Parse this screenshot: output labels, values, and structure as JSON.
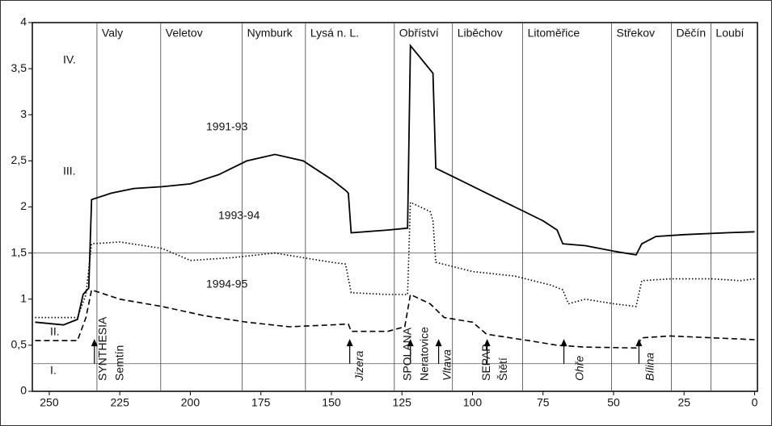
{
  "chart_data": {
    "type": "line",
    "xlim": [
      256,
      -1
    ],
    "ylim": [
      0,
      4
    ],
    "xticks": [
      250,
      225,
      200,
      175,
      150,
      125,
      100,
      75,
      50,
      25,
      0
    ],
    "yticks": [
      0,
      {
        "value": 0.5,
        "label": "0,5"
      },
      1,
      {
        "value": 1.5,
        "label": "1,5"
      },
      2,
      {
        "value": 2.5,
        "label": "2,5"
      },
      3,
      {
        "value": 3.5,
        "label": "3,5"
      },
      4
    ],
    "class_lines": [
      0.3,
      1.5
    ],
    "classes": [
      "I.",
      "II.",
      "III.",
      "IV."
    ],
    "places": [
      {
        "name": "Valy",
        "km": 233.1
      },
      {
        "name": "Veletov",
        "km": 210.5
      },
      {
        "name": "Nymburk",
        "km": 181.6
      },
      {
        "name": "Lysá n. L.",
        "km": 159.2
      },
      {
        "name": "Obříství",
        "km": 127.7
      },
      {
        "name": "Liběchov",
        "km": 107.1
      },
      {
        "name": "Litoměřice",
        "km": 82.2
      },
      {
        "name": "Střekov",
        "km": 50.7
      },
      {
        "name": "Děčín",
        "km": 29.5
      },
      {
        "name": "Loubí",
        "km": 15.5
      }
    ],
    "sources": [
      {
        "label": "SYNTHESIA",
        "km": 232,
        "style": "normal"
      },
      {
        "label": "Semtín",
        "km": 226,
        "style": "normal"
      },
      {
        "label": "Jizera",
        "km": 141,
        "style": "italic"
      },
      {
        "label": "SPOLANA",
        "km": 124,
        "style": "normal"
      },
      {
        "label": "Neratovice",
        "km": 118,
        "style": "normal"
      },
      {
        "label": "Vltava",
        "km": 110,
        "style": "italic"
      },
      {
        "label": "SEPAP",
        "km": 96,
        "style": "normal"
      },
      {
        "label": "Štětí",
        "km": 90,
        "style": "normal"
      },
      {
        "label": "Ohře",
        "km": 63,
        "style": "italic"
      },
      {
        "label": "Bílina",
        "km": 38,
        "style": "italic"
      }
    ],
    "arrows_km": [
      234,
      143.5,
      122,
      112,
      94.8,
      67.6,
      41
    ],
    "series": [
      {
        "name": "1991-93",
        "color": "#000000",
        "dash": "solid",
        "x": [
          255,
          245,
          240,
          238,
          236,
          235,
          228,
          220,
          210,
          200,
          190,
          180,
          170,
          160,
          150,
          145,
          144,
          143,
          130,
          123,
          122,
          118,
          114,
          113,
          105,
          95,
          85,
          75,
          70,
          68,
          60,
          50,
          42,
          40,
          35,
          25,
          10,
          0
        ],
        "values": [
          0.75,
          0.72,
          0.78,
          1.05,
          1.12,
          2.08,
          2.15,
          2.2,
          2.22,
          2.25,
          2.35,
          2.5,
          2.57,
          2.5,
          2.3,
          2.18,
          2.15,
          1.72,
          1.75,
          1.77,
          3.75,
          3.6,
          3.45,
          2.42,
          2.3,
          2.15,
          2.0,
          1.85,
          1.75,
          1.6,
          1.58,
          1.52,
          1.48,
          1.6,
          1.68,
          1.7,
          1.72,
          1.73
        ]
      },
      {
        "name": "1993-94",
        "color": "#000000",
        "dash": "dotted",
        "x": [
          255,
          240,
          237,
          235,
          225,
          210,
          200,
          185,
          170,
          150,
          145,
          143,
          130,
          123,
          122,
          115,
          114,
          113,
          100,
          85,
          72,
          68,
          66,
          60,
          50,
          42,
          40,
          30,
          15,
          5,
          0
        ],
        "values": [
          0.8,
          0.8,
          1.05,
          1.6,
          1.62,
          1.55,
          1.42,
          1.45,
          1.5,
          1.4,
          1.38,
          1.07,
          1.05,
          1.05,
          2.05,
          1.95,
          1.85,
          1.4,
          1.3,
          1.25,
          1.15,
          1.1,
          0.95,
          1.0,
          0.95,
          0.92,
          1.2,
          1.22,
          1.22,
          1.2,
          1.22
        ]
      },
      {
        "name": "1994-95",
        "color": "#000000",
        "dash": "dashed",
        "x": [
          255,
          240,
          237,
          235,
          225,
          210,
          195,
          180,
          165,
          150,
          144,
          143,
          130,
          124,
          122,
          115,
          110,
          100,
          95,
          80,
          70,
          60,
          42,
          40,
          30,
          15,
          0
        ],
        "values": [
          0.55,
          0.55,
          0.8,
          1.1,
          1.0,
          0.92,
          0.82,
          0.75,
          0.7,
          0.72,
          0.73,
          0.65,
          0.65,
          0.7,
          1.05,
          0.95,
          0.8,
          0.75,
          0.62,
          0.55,
          0.5,
          0.48,
          0.47,
          0.58,
          0.6,
          0.58,
          0.56
        ]
      }
    ]
  }
}
